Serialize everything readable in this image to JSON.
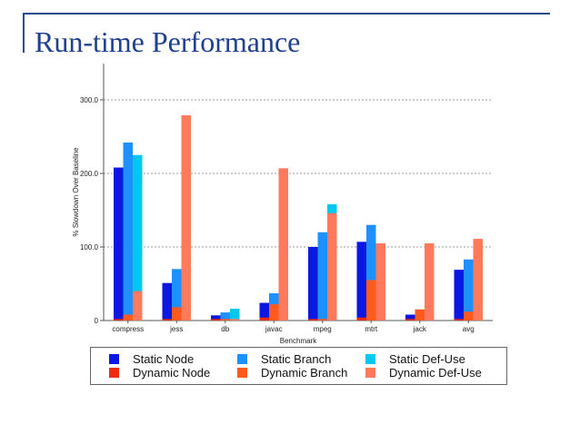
{
  "slide": {
    "title": "Run-time Performance"
  },
  "chart_data": {
    "type": "bar",
    "title": "",
    "xlabel": "Benchmark",
    "ylabel": "% Slowdown Over Baseline",
    "ylim": [
      0,
      300
    ],
    "yticks": [
      {
        "value": 0,
        "label": "0"
      },
      {
        "value": 100,
        "label": "100.0"
      },
      {
        "value": 200,
        "label": "200.0"
      },
      {
        "value": 300,
        "label": "300.0"
      }
    ],
    "grid": true,
    "legend_position": "bottom",
    "categories": [
      "compress",
      "jess",
      "db",
      "javac",
      "mpeg",
      "mtrt",
      "jack",
      "avg"
    ],
    "groups": [
      {
        "bars": [
          {
            "series": [
              "Static Node",
              "Dynamic Node"
            ]
          },
          {
            "series": [
              "Static Branch",
              "Dynamic Branch"
            ]
          },
          {
            "series": [
              "Static Def-Use",
              "Dynamic Def-Use"
            ]
          }
        ]
      }
    ],
    "series": [
      {
        "name": "Static Node",
        "color": "#0b19e0",
        "values": [
          208,
          51,
          7,
          24,
          100,
          107,
          8,
          69
        ]
      },
      {
        "name": "Static Branch",
        "color": "#1e90ff",
        "values": [
          242,
          70,
          11,
          37,
          120,
          130,
          15,
          83
        ]
      },
      {
        "name": "Static Def-Use",
        "color": "#00c8f0",
        "values": [
          225,
          63,
          16,
          41,
          158,
          67,
          28,
          84
        ]
      },
      {
        "name": "Dynamic Node",
        "color": "#f02a10",
        "values": [
          2,
          2,
          2,
          4,
          2,
          4,
          2,
          2
        ]
      },
      {
        "name": "Dynamic Branch",
        "color": "#ff5a1e",
        "values": [
          8,
          18,
          2,
          22,
          2,
          55,
          15,
          12
        ]
      },
      {
        "name": "Dynamic Def-Use",
        "color": "#ff7a5c",
        "values": [
          40,
          279,
          2,
          207,
          146,
          105,
          105,
          111
        ]
      }
    ]
  }
}
